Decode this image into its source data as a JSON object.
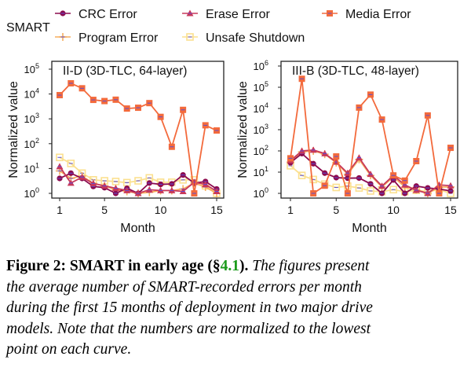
{
  "legend": {
    "title": "SMART",
    "placement": "top",
    "entries": [
      {
        "name": "CRC Error",
        "color": "#8c0b4f",
        "marker": "circle"
      },
      {
        "name": "Erase Error",
        "color": "#c8385a",
        "marker": "triangle"
      },
      {
        "name": "Media Error",
        "color": "#f36a3c",
        "marker": "square"
      },
      {
        "name": "Program Error",
        "color": "#f6ad5e",
        "marker": "plus"
      },
      {
        "name": "Unsafe Shutdown",
        "color": "#fbe08f",
        "marker": "square-open"
      }
    ]
  },
  "chart_data": [
    {
      "type": "line",
      "title": "II-D (3D-TLC, 64-layer)",
      "xlabel": "Month",
      "ylabel": "Normalized value",
      "yscale": "log",
      "ylim": [
        1,
        100000
      ],
      "yticks": [
        "10^0",
        "10^1",
        "10^2",
        "10^3",
        "10^4",
        "10^5"
      ],
      "xticks": [
        1,
        5,
        10,
        15
      ],
      "grid": false,
      "x": [
        1,
        2,
        3,
        4,
        5,
        6,
        7,
        8,
        9,
        10,
        11,
        12,
        13,
        14,
        15
      ],
      "series": [
        {
          "name": "CRC Error",
          "values": [
            4,
            6.5,
            4,
            1.9,
            1.7,
            1,
            1.6,
            1,
            2.6,
            2.3,
            2.4,
            5.5,
            2.6,
            3,
            1.5
          ]
        },
        {
          "name": "Erase Error",
          "values": [
            12,
            2.6,
            4.5,
            2.5,
            2,
            1.6,
            1.3,
            1,
            1.4,
            1.3,
            1.3,
            1.2,
            2.8,
            2.3,
            1.2
          ]
        },
        {
          "name": "Media Error",
          "values": [
            9000,
            27000,
            17000,
            5800,
            5200,
            5900,
            2600,
            2800,
            4300,
            1200,
            75,
            2300,
            1,
            550,
            340
          ]
        },
        {
          "name": "Program Error",
          "values": [
            8,
            4,
            5,
            2.5,
            2,
            1.4,
            1.2,
            1,
            1.1,
            1.3,
            1.3,
            1.5,
            2.6,
            1.8,
            1
          ]
        },
        {
          "name": "Unsafe Shutdown",
          "values": [
            28,
            16,
            6.5,
            3.5,
            3.2,
            3,
            2.7,
            3.2,
            4.2,
            2.8,
            2.8,
            3.5,
            3.5,
            2,
            1
          ]
        }
      ]
    },
    {
      "type": "line",
      "title": "III-B (3D-TLC, 48-layer)",
      "xlabel": "Month",
      "ylabel": "Normalized value",
      "yscale": "log",
      "ylim": [
        1,
        1000000
      ],
      "yticks": [
        "10^0",
        "10^1",
        "10^2",
        "10^3",
        "10^4",
        "10^5",
        "10^6"
      ],
      "xticks": [
        1,
        5,
        10,
        15
      ],
      "grid": false,
      "x": [
        1,
        2,
        3,
        4,
        5,
        6,
        7,
        8,
        9,
        10,
        11,
        12,
        13,
        14,
        15
      ],
      "series": [
        {
          "name": "CRC Error",
          "values": [
            28,
            75,
            25,
            9,
            5.5,
            5.2,
            5.3,
            2.8,
            1,
            4.3,
            1,
            2.2,
            1.8,
            1.6,
            1.3
          ]
        },
        {
          "name": "Erase Error",
          "values": [
            35,
            100,
            110,
            75,
            30,
            9,
            48,
            8,
            2.2,
            7,
            2.5,
            1.4,
            1,
            2.5,
            2.3
          ]
        },
        {
          "name": "Media Error",
          "values": [
            45,
            250000,
            1,
            2.3,
            55,
            1,
            11000,
            45000,
            3000,
            7,
            4,
            33,
            4700,
            1,
            140
          ]
        },
        {
          "name": "Program Error",
          "values": [
            30,
            90,
            100,
            70,
            28,
            8,
            40,
            7,
            2,
            6,
            2,
            1.5,
            1,
            2,
            2
          ]
        },
        {
          "name": "Unsafe Shutdown",
          "values": [
            20,
            7,
            4.5,
            2.7,
            1.9,
            2.2,
            1.8,
            1.3,
            1.2,
            1.5,
            1.2,
            1.4,
            1.2,
            1.5,
            1
          ]
        }
      ]
    }
  ],
  "caption": {
    "label": "Figure 2: SMART in early age (§",
    "ref": "4.1",
    "label_end": ").",
    "lines": [
      " The figures present",
      "the average number of SMART-recorded errors per month",
      "during the first 15 months of deployment in two major drive",
      "models. Note that the numbers are normalized to the lowest",
      "point on each curve."
    ]
  }
}
